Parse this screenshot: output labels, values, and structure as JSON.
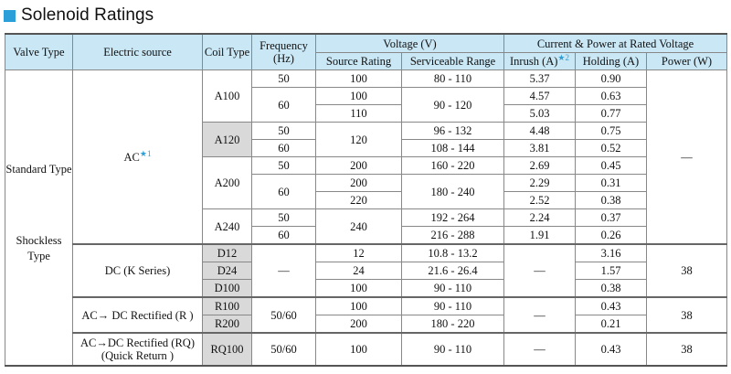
{
  "title": "Solenoid Ratings",
  "accent_color": "#2a9fd8",
  "header": {
    "valve_type": "Valve Type",
    "electric_source": "Electric source",
    "coil_type": "Coil Type",
    "frequency": "Frequency (Hz)",
    "voltage": "Voltage (V)",
    "current_power": "Current & Power at Rated Voltage",
    "source_rating": "Source Rating",
    "serviceable_range": "Serviceable Range",
    "inrush": "Inrush (A)",
    "inrush_mark": "★2",
    "holding": "Holding (A)",
    "power": "Power (W)"
  },
  "valve_types": {
    "standard": "Standard Type",
    "shockless": "Shockless Type"
  },
  "sources": {
    "ac": "AC",
    "ac_mark": "★1",
    "dc_k": "DC (K Series)",
    "ac_dc_r": "AC→ DC Rectified (R )",
    "ac_dc_rq": "AC→DC Rectified (RQ) (Quick Return )"
  },
  "ac_rows": {
    "coils": [
      "A100",
      "A120",
      "A200",
      "A240"
    ],
    "frequency": [
      "50",
      "60",
      "50",
      "60",
      "50",
      "60",
      "50",
      "60"
    ],
    "source_rating": [
      "100",
      "100",
      "110",
      "120",
      "200",
      "200",
      "220",
      "240"
    ],
    "range": [
      "80 - 110",
      "90 - 120",
      "96 - 132",
      "108 - 144",
      "160 - 220",
      "180 - 240",
      "192 - 264",
      "216 - 288"
    ],
    "inrush": [
      "5.37",
      "4.57",
      "5.03",
      "4.48",
      "3.81",
      "2.69",
      "2.29",
      "2.52",
      "2.24",
      "1.91"
    ],
    "holding": [
      "0.90",
      "0.63",
      "0.77",
      "0.75",
      "0.52",
      "0.45",
      "0.31",
      "0.38",
      "0.37",
      "0.26"
    ],
    "power": "—"
  },
  "dc_rows": {
    "coils": [
      "D12",
      "D24",
      "D100"
    ],
    "frequency": "—",
    "source_rating": [
      "12",
      "24",
      "100"
    ],
    "range": [
      "10.8 - 13.2",
      "21.6 - 26.4",
      "90 - 110"
    ],
    "inrush": "—",
    "holding": [
      "3.16",
      "1.57",
      "0.38"
    ],
    "power": "38"
  },
  "r_rows": {
    "coils": [
      "R100",
      "R200"
    ],
    "frequency": "50/60",
    "source_rating": [
      "100",
      "200"
    ],
    "range": [
      "90 - 110",
      "180 - 220"
    ],
    "inrush": "—",
    "holding": [
      "0.43",
      "0.21"
    ],
    "power": "38"
  },
  "rq_row": {
    "coil": "RQ100",
    "frequency": "50/60",
    "source_rating": "100",
    "range": "90 - 110",
    "inrush": "—",
    "holding": "0.43",
    "power": "38"
  }
}
